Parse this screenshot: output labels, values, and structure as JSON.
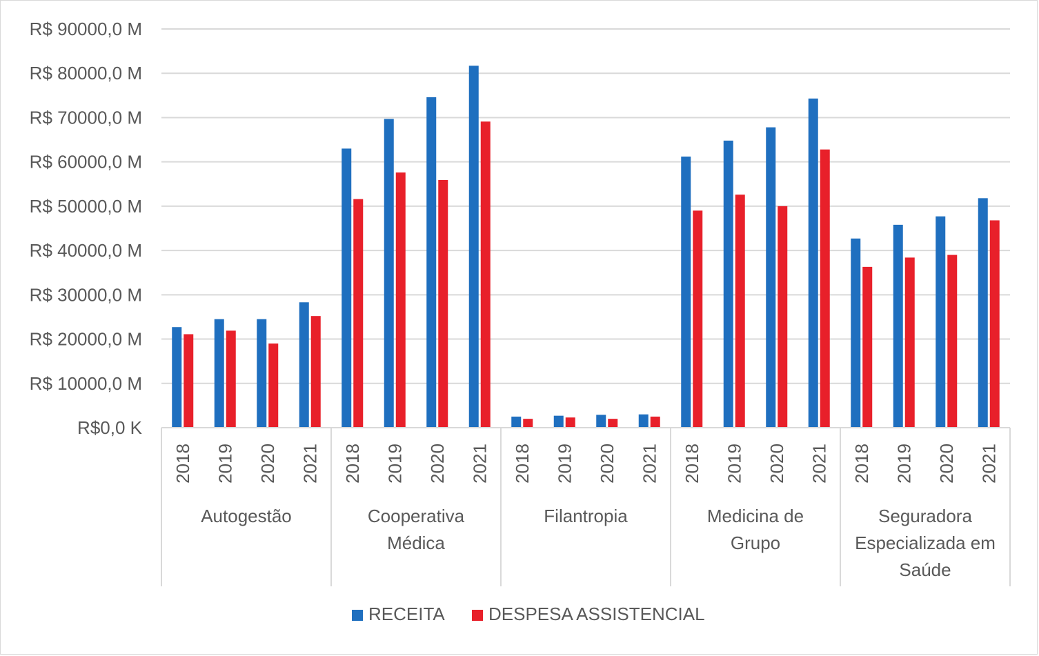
{
  "chart_data": {
    "type": "bar",
    "title": "",
    "xlabel": "",
    "ylabel": "",
    "ylim": [
      0,
      90000
    ],
    "grid": true,
    "legend_position": "bottom",
    "y_tick_labels": [
      "R$0,0 K",
      "R$ 10000,0 M",
      "R$ 20000,0 M",
      "R$ 30000,0 M",
      "R$ 40000,0 M",
      "R$ 50000,0 M",
      "R$ 60000,0 M",
      "R$ 70000,0 M",
      "R$ 80000,0 M",
      "R$ 90000,0 M"
    ],
    "groups": [
      {
        "lines": [
          "Autogestão"
        ]
      },
      {
        "lines": [
          "Cooperativa",
          "Médica"
        ]
      },
      {
        "lines": [
          "Filantropia"
        ]
      },
      {
        "lines": [
          "Medicina de",
          "Grupo"
        ]
      },
      {
        "lines": [
          "Seguradora",
          "Especializada em",
          "Saúde"
        ]
      }
    ],
    "years": [
      "2018",
      "2019",
      "2020",
      "2021"
    ],
    "series": [
      {
        "name": "RECEITA",
        "color": "#1F6FBF",
        "values": [
          [
            22700,
            24500,
            24500,
            28300
          ],
          [
            63000,
            69700,
            74600,
            81700
          ],
          [
            2500,
            2700,
            2900,
            3000
          ],
          [
            61200,
            64800,
            67800,
            74300
          ],
          [
            42700,
            45800,
            47700,
            51800
          ]
        ]
      },
      {
        "name": "DESPESA ASSISTENCIAL",
        "color": "#E8202A",
        "values": [
          [
            21100,
            21900,
            19000,
            25200
          ],
          [
            51600,
            57600,
            55900,
            69100
          ],
          [
            2000,
            2300,
            2000,
            2500
          ],
          [
            49000,
            52600,
            50000,
            62800
          ],
          [
            36300,
            38400,
            39000,
            46800
          ]
        ]
      }
    ]
  }
}
